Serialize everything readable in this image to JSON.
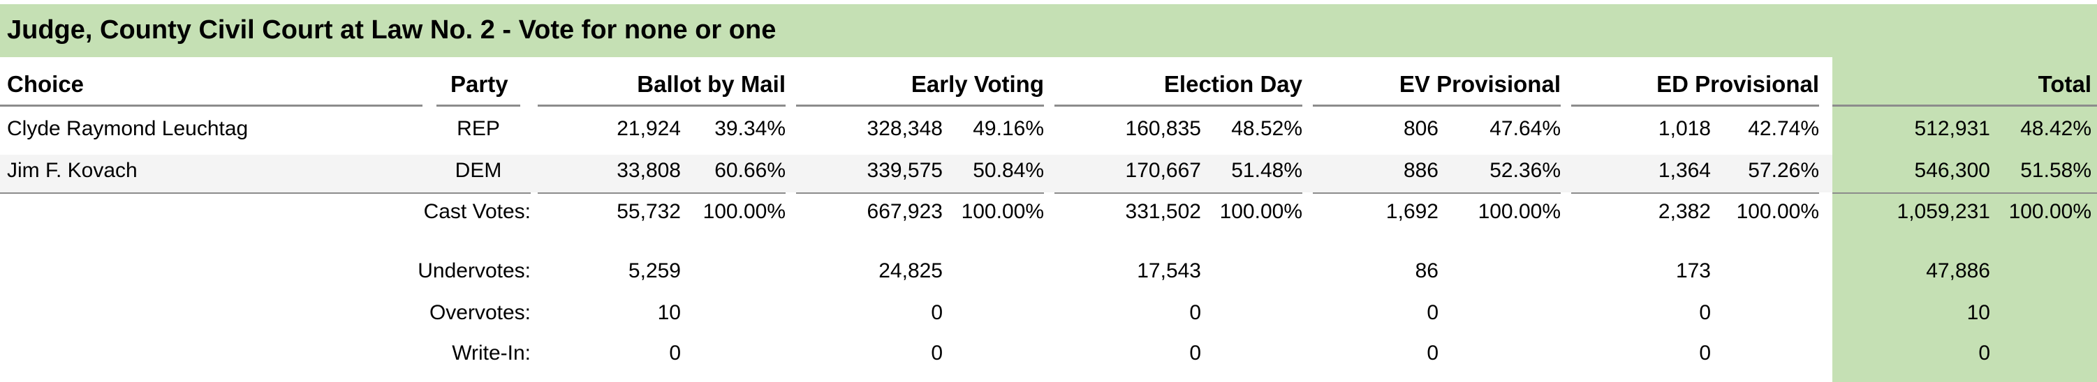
{
  "title": "Judge, County Civil Court at Law No. 2 - Vote for none or one",
  "headers": {
    "choice": "Choice",
    "party": "Party",
    "ballot_by_mail": "Ballot by Mail",
    "early_voting": "Early Voting",
    "election_day": "Election Day",
    "ev_provisional": "EV Provisional",
    "ed_provisional": "ED Provisional",
    "total": "Total"
  },
  "candidates": [
    {
      "name": "Clyde Raymond Leuchtag",
      "party": "REP",
      "mail_votes": "21,924",
      "mail_pct": "39.34%",
      "ev_votes": "328,348",
      "ev_pct": "49.16%",
      "ed_votes": "160,835",
      "ed_pct": "48.52%",
      "evp_votes": "806",
      "evp_pct": "47.64%",
      "edp_votes": "1,018",
      "edp_pct": "42.74%",
      "total_votes": "512,931",
      "total_pct": "48.42%"
    },
    {
      "name": "Jim F. Kovach",
      "party": "DEM",
      "mail_votes": "33,808",
      "mail_pct": "60.66%",
      "ev_votes": "339,575",
      "ev_pct": "50.84%",
      "ed_votes": "170,667",
      "ed_pct": "51.48%",
      "evp_votes": "886",
      "evp_pct": "52.36%",
      "edp_votes": "1,364",
      "edp_pct": "57.26%",
      "total_votes": "546,300",
      "total_pct": "51.58%"
    }
  ],
  "cast_votes": {
    "label": "Cast Votes:",
    "mail_votes": "55,732",
    "mail_pct": "100.00%",
    "ev_votes": "667,923",
    "ev_pct": "100.00%",
    "ed_votes": "331,502",
    "ed_pct": "100.00%",
    "evp_votes": "1,692",
    "evp_pct": "100.00%",
    "edp_votes": "2,382",
    "edp_pct": "100.00%",
    "total_votes": "1,059,231",
    "total_pct": "100.00%"
  },
  "undervotes": {
    "label": "Undervotes:",
    "mail": "5,259",
    "ev": "24,825",
    "ed": "17,543",
    "evp": "86",
    "edp": "173",
    "total": "47,886"
  },
  "overvotes": {
    "label": "Overvotes:",
    "mail": "10",
    "ev": "0",
    "ed": "0",
    "evp": "0",
    "edp": "0",
    "total": "10"
  },
  "write_in": {
    "label": "Write-In:",
    "mail": "0",
    "ev": "0",
    "ed": "0",
    "evp": "0",
    "edp": "0",
    "total": "0"
  },
  "colors": {
    "accent_green": "#c5e0b4",
    "rule_gray": "#8c8c8c",
    "row_alt": "#f4f4f4"
  }
}
